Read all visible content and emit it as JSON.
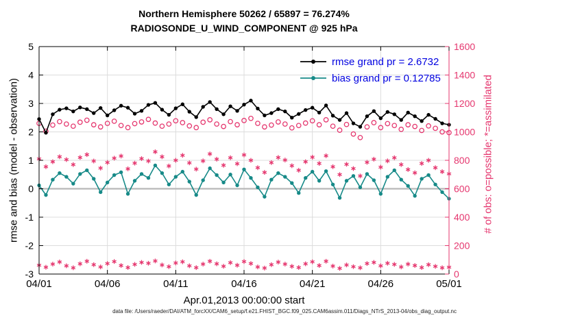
{
  "header": {
    "title_line1": "Northern Hemisphere 50262 / 65897 = 76.274%",
    "title_line2": "RADIOSONDE_U_WIND_COMPONENT @ 925 hPa"
  },
  "axes": {
    "xlabel": "Apr.01,2013 00:00:00 start",
    "ylabel_left": "rmse and bias (model - observation)",
    "ylabel_right": "# of obs: o=possible; *=assimilated"
  },
  "legend": {
    "rmse_label": "rmse grand pr = 2.6732",
    "bias_label": "bias grand pr = 0.12785"
  },
  "footer": {
    "data_file": "data file: /Users/raeder/DAI/ATM_forcXX/CAM6_setup/f.e21.FHIST_BGC.f09_025.CAM6assim.011/Diags_NTrS_2013-04/obs_diag_output.nc"
  },
  "colors": {
    "rmse": "#000000",
    "bias": "#178a88",
    "obs": "#e5366e",
    "legend_text": "#0000e0",
    "grid": "#dcdcdc",
    "zero_line": "#b8b8b8",
    "axis": "#000000"
  },
  "chart_data": {
    "type": "line",
    "title": "Northern Hemisphere 50262 / 65897 = 76.274%",
    "subtitle": "RADIOSONDE_U_WIND_COMPONENT @ 925 hPa",
    "xlabel": "Apr.01,2013 00:00:00 start",
    "ylabel_left": "rmse and bias (model - observation)",
    "ylabel_right": "# of obs: o=possible; *=assimilated",
    "ylim_left": [
      -3,
      5
    ],
    "ylim_right": [
      0,
      1600
    ],
    "grid": true,
    "legend_position": "top-right",
    "x_ticks": [
      "04/01",
      "04/06",
      "04/11",
      "04/16",
      "04/21",
      "04/26",
      "05/01"
    ],
    "y_ticks_left": [
      -3,
      -2,
      -1,
      0,
      1,
      2,
      3,
      4,
      5
    ],
    "y_ticks_right": [
      0,
      200,
      400,
      600,
      800,
      1000,
      1200,
      1400,
      1600
    ],
    "rmse_grand_prior": 2.6732,
    "bias_grand_prior": 0.12785,
    "series": [
      {
        "name": "possible_obs",
        "axis": "right",
        "marker": "circle",
        "color_key": "obs",
        "values": [
          1060,
          1005,
          1048,
          1072,
          1055,
          1040,
          1068,
          1082,
          1050,
          1035,
          1060,
          1075,
          1045,
          1030,
          1058,
          1070,
          1088,
          1062,
          1040,
          1055,
          1078,
          1065,
          1042,
          1030,
          1068,
          1085,
          1055,
          1038,
          1072,
          1050,
          1080,
          1095,
          1060,
          1035,
          1048,
          1070,
          1055,
          1028,
          1045,
          1062,
          1078,
          1050,
          1085,
          1040,
          1012,
          1052,
          985,
          960,
          1035,
          1065,
          1030,
          1058,
          1045,
          1018,
          1050,
          1038,
          1010,
          1042,
          1025,
          1000,
          995
        ]
      },
      {
        "name": "assimilated_obs",
        "axis": "right",
        "marker": "asterisk",
        "color_key": "obs",
        "values": [
          810,
          755,
          790,
          825,
          805,
          770,
          820,
          840,
          795,
          745,
          785,
          815,
          830,
          740,
          780,
          812,
          795,
          860,
          825,
          760,
          800,
          835,
          782,
          738,
          796,
          845,
          808,
          765,
          818,
          776,
          838,
          800,
          748,
          715,
          784,
          820,
          802,
          762,
          730,
          790,
          822,
          778,
          832,
          755,
          700,
          772,
          742,
          690,
          786,
          808,
          752,
          796,
          818,
          770,
          735,
          712,
          778,
          800,
          748,
          720,
          705
        ]
      },
      {
        "name": "obs_low_band",
        "axis": "right",
        "marker": "asterisk",
        "color_key": "obs",
        "values": [
          62,
          48,
          70,
          85,
          58,
          44,
          72,
          90,
          66,
          50,
          74,
          88,
          60,
          46,
          68,
          82,
          76,
          92,
          64,
          52,
          78,
          86,
          58,
          45,
          70,
          90,
          72,
          55,
          80,
          62,
          88,
          74,
          50,
          42,
          66,
          84,
          70,
          54,
          46,
          72,
          86,
          60,
          90,
          56,
          40,
          64,
          52,
          44,
          74,
          82,
          58,
          76,
          68,
          50,
          70,
          60,
          46,
          66,
          54,
          44,
          48
        ]
      },
      {
        "name": "bias",
        "axis": "left",
        "marker": "dot",
        "color_key": "bias",
        "values": [
          0.12,
          -0.22,
          0.32,
          0.55,
          0.42,
          0.18,
          0.52,
          0.65,
          0.35,
          -0.12,
          0.22,
          0.48,
          0.58,
          -0.18,
          0.28,
          0.52,
          0.38,
          0.82,
          0.55,
          0.15,
          0.42,
          0.6,
          0.25,
          -0.22,
          0.3,
          0.72,
          0.48,
          0.22,
          0.5,
          0.12,
          0.68,
          0.38,
          0.05,
          -0.28,
          0.32,
          0.55,
          0.42,
          0.2,
          -0.15,
          0.38,
          0.6,
          0.28,
          0.62,
          0.15,
          -0.32,
          0.28,
          0.45,
          0.05,
          0.52,
          0.3,
          -0.18,
          0.42,
          0.65,
          0.32,
          0.1,
          -0.25,
          0.35,
          0.48,
          0.15,
          -0.12,
          -0.35
        ]
      },
      {
        "name": "rmse",
        "axis": "left",
        "marker": "dot",
        "color_key": "rmse",
        "values": [
          2.45,
          1.97,
          2.62,
          2.78,
          2.83,
          2.72,
          2.86,
          2.8,
          2.66,
          2.84,
          2.58,
          2.76,
          2.92,
          2.85,
          2.64,
          2.74,
          2.95,
          3.02,
          2.78,
          2.6,
          2.83,
          2.97,
          2.71,
          2.52,
          2.88,
          3.05,
          2.8,
          2.62,
          2.9,
          2.74,
          2.96,
          3.1,
          2.82,
          2.58,
          2.66,
          2.8,
          2.72,
          2.5,
          2.63,
          2.77,
          2.85,
          2.68,
          2.93,
          2.57,
          2.42,
          2.66,
          2.3,
          2.18,
          2.55,
          2.73,
          2.48,
          2.7,
          2.62,
          2.42,
          2.68,
          2.55,
          2.38,
          2.6,
          2.46,
          2.3,
          2.25
        ]
      }
    ]
  }
}
